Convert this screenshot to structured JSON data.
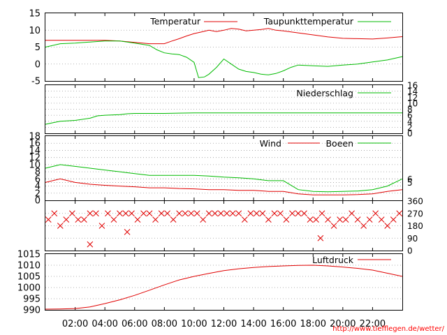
{
  "source": "http://www.tiefflegen.de/wetter/",
  "colors": {
    "red": "#e00000",
    "green": "#00bb00",
    "grid": "#999999"
  },
  "x_ticks": [
    "02:00",
    "04:00",
    "06:00",
    "08:00",
    "10:00",
    "12:00",
    "14:00",
    "16:00",
    "18:00",
    "20:00",
    "22:00"
  ],
  "chart_data": [
    {
      "type": "line",
      "panel": "temperature",
      "x_unit": "hours",
      "xlim": [
        0,
        24
      ],
      "ylim": [
        -5,
        15
      ],
      "y_ticks": [
        "15",
        "10",
        "5",
        "0",
        "-5"
      ],
      "legend_placement": "top-right",
      "series": [
        {
          "name": "Temperatur",
          "color": "#e00000",
          "x": [
            0,
            1,
            2,
            3,
            4,
            5,
            6,
            7,
            8,
            8.5,
            9,
            9.5,
            10,
            10.5,
            11,
            11.5,
            12,
            12.5,
            13,
            13.5,
            14,
            14.5,
            15,
            15.5,
            16,
            17,
            18,
            19,
            20,
            21,
            22,
            23,
            24
          ],
          "y": [
            7,
            7,
            7,
            7,
            7,
            6.8,
            6.4,
            6,
            6,
            6.8,
            7.5,
            8.3,
            9,
            9.5,
            10,
            9.6,
            10,
            10.5,
            10.3,
            9.8,
            10,
            10.2,
            10.5,
            10,
            9.8,
            9.2,
            8.6,
            8,
            7.6,
            7.5,
            7.4,
            7.7,
            8.1
          ]
        },
        {
          "name": "Taupunkttemperatur",
          "color": "#00bb00",
          "x": [
            0,
            1,
            2,
            3,
            4,
            5,
            6,
            7,
            7.5,
            8,
            8.5,
            9,
            9.5,
            10,
            10.3,
            10.7,
            11,
            11.5,
            12,
            12.5,
            13,
            13.5,
            14,
            14.5,
            15,
            15.5,
            16,
            16.5,
            17,
            18,
            19,
            20,
            21,
            22,
            23,
            24
          ],
          "y": [
            5,
            6,
            6.2,
            6.5,
            6.8,
            6.8,
            6.2,
            5.5,
            4.2,
            3.3,
            3,
            2.8,
            2,
            0.5,
            -4,
            -3.8,
            -3,
            -1,
            1.5,
            0,
            -1.5,
            -2.2,
            -2.5,
            -3,
            -3.2,
            -2.8,
            -2,
            -1,
            -0.3,
            -0.5,
            -0.7,
            -0.3,
            0,
            0.6,
            1.2,
            2.2
          ]
        }
      ]
    },
    {
      "type": "line",
      "panel": "precipitation",
      "x_unit": "hours",
      "xlim": [
        0,
        24
      ],
      "ylim": [
        0,
        16
      ],
      "y_ticks_right": [
        "16",
        "14",
        "12",
        "10",
        "8",
        "6",
        "4",
        "2",
        "0"
      ],
      "legend_placement": "top-right",
      "series": [
        {
          "name": "Niederschlag",
          "color": "#00bb00",
          "x": [
            0,
            0.5,
            1,
            2,
            3,
            3.5,
            4,
            5,
            5.5,
            6,
            8,
            10,
            12,
            16,
            20,
            24
          ],
          "y": [
            3,
            3.5,
            4,
            4.3,
            5,
            5.8,
            6,
            6.2,
            6.5,
            6.6,
            6.6,
            6.8,
            6.8,
            6.8,
            6.8,
            6.8
          ]
        }
      ]
    },
    {
      "type": "line",
      "panel": "wind",
      "x_unit": "hours",
      "xlim": [
        0,
        24
      ],
      "ylim": [
        0,
        18
      ],
      "y_ticks": [
        "18",
        "16",
        "14",
        "12",
        "10",
        "8",
        "6",
        "4",
        "2",
        "0"
      ],
      "y_ticks_right": [
        "6",
        "5"
      ],
      "legend_placement": "top-right",
      "series": [
        {
          "name": "Wind",
          "color": "#e00000",
          "x": [
            0,
            1,
            2,
            3,
            4,
            5,
            6,
            7,
            8,
            9,
            10,
            11,
            12,
            13,
            14,
            15,
            16,
            17,
            18,
            19,
            20,
            21,
            22,
            23,
            24
          ],
          "y": [
            5,
            6,
            5,
            4.5,
            4.2,
            4,
            3.8,
            3.5,
            3.5,
            3.3,
            3.2,
            3,
            3,
            2.8,
            2.8,
            2.5,
            2.5,
            1.8,
            1.5,
            1.5,
            1.5,
            1.6,
            1.8,
            2.5,
            3
          ]
        },
        {
          "name": "Boeen",
          "color": "#00bb00",
          "x": [
            0,
            1,
            2,
            3,
            4,
            5,
            6,
            7,
            8,
            9,
            10,
            11,
            12,
            13,
            14,
            15,
            16,
            17,
            18,
            19,
            20,
            21,
            22,
            23,
            24
          ],
          "y": [
            9,
            10,
            9.5,
            9,
            8.5,
            8,
            7.5,
            7,
            7,
            7,
            7,
            6.8,
            6.5,
            6.3,
            6,
            5.5,
            5.5,
            3,
            2.5,
            2.4,
            2.5,
            2.6,
            3,
            4,
            6
          ]
        }
      ]
    },
    {
      "type": "scatter",
      "panel": "wind_direction",
      "x_unit": "hours",
      "xlim": [
        0,
        24
      ],
      "ylim": [
        0,
        360
      ],
      "y_ticks_right": [
        "360",
        "270",
        "180",
        "90",
        "0"
      ],
      "marker": "x",
      "series": [
        {
          "color": "#e00000",
          "x": [
            0.2,
            0.6,
            1,
            1.4,
            1.8,
            2.2,
            2.6,
            3,
            3.4,
            3.8,
            4.2,
            4.6,
            5,
            5.4,
            5.8,
            6.2,
            6.6,
            7,
            7.4,
            7.8,
            8.2,
            8.6,
            9,
            9.4,
            9.8,
            10.2,
            10.6,
            11,
            11.4,
            11.8,
            12.2,
            12.6,
            13,
            13.4,
            13.8,
            14.2,
            14.6,
            15,
            15.4,
            15.8,
            16.2,
            16.6,
            17,
            17.4,
            17.8,
            18.2,
            18.6,
            19,
            19.4,
            19.8,
            20.2,
            20.6,
            21,
            21.4,
            21.8,
            22.2,
            22.6,
            23,
            23.4,
            23.8,
            3,
            5.5,
            18.5
          ],
          "y": [
            225,
            270,
            180,
            225,
            270,
            225,
            225,
            270,
            270,
            180,
            270,
            225,
            270,
            270,
            270,
            225,
            270,
            270,
            225,
            270,
            270,
            225,
            270,
            270,
            270,
            270,
            225,
            270,
            270,
            270,
            270,
            270,
            270,
            225,
            270,
            270,
            270,
            225,
            270,
            270,
            225,
            270,
            270,
            270,
            225,
            225,
            270,
            225,
            180,
            225,
            225,
            270,
            225,
            180,
            225,
            270,
            225,
            180,
            225,
            270,
            45,
            135,
            90
          ]
        }
      ]
    },
    {
      "type": "line",
      "panel": "pressure",
      "x_unit": "hours",
      "xlim": [
        0,
        24
      ],
      "ylim": [
        990,
        1015
      ],
      "y_ticks": [
        "1015",
        "1010",
        "1005",
        "1000",
        "995",
        "990"
      ],
      "legend_placement": "top-right",
      "series": [
        {
          "name": "Luftdruck",
          "color": "#e00000",
          "x": [
            0,
            1,
            2,
            3,
            4,
            5,
            6,
            7,
            8,
            9,
            10,
            11,
            12,
            13,
            14,
            15,
            16,
            17,
            18,
            19,
            20,
            21,
            22,
            23,
            24
          ],
          "y": [
            990.3,
            990.4,
            990.6,
            991.3,
            992.8,
            994.5,
            996.5,
            998.8,
            1001.2,
            1003.4,
            1005,
            1006.3,
            1007.6,
            1008.4,
            1009,
            1009.4,
            1009.7,
            1009.9,
            1010,
            1009.7,
            1009.2,
            1008.6,
            1007.8,
            1006.4,
            1005
          ]
        }
      ]
    }
  ]
}
